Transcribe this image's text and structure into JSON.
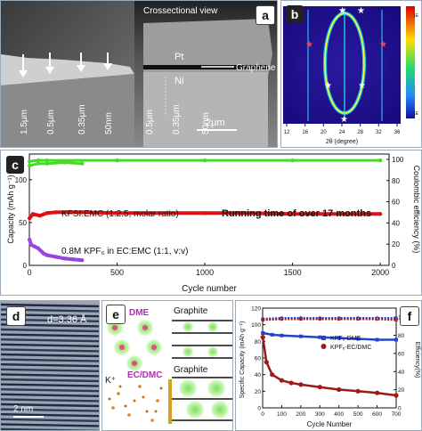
{
  "panel_a": {
    "tag": "a",
    "title": "Crossectional view",
    "left_labels": [
      "1.5μm",
      "0.5μm",
      "0.35μm",
      "50nm"
    ],
    "right_labels": [
      "0.5μm",
      "0.35μm",
      "50nm"
    ],
    "pt_label": "Pt",
    "ni_label": "Ni",
    "graphene_label": "Graphene",
    "scalebar": "2μm"
  },
  "panel_b": {
    "tag": "b",
    "xlabel": "2θ (degree)",
    "xticks": [
      "12",
      "16",
      "20",
      "24",
      "28",
      "32",
      "36"
    ],
    "colorbar_top": "1E",
    "colorbar_bottom": "1E"
  },
  "panel_c": {
    "tag": "c",
    "ylabel_left": "Capacity (mAh g⁻¹)",
    "ylabel_right": "Coulombic efficiency (%)",
    "xlabel": "Cycle number",
    "yticks_left": [
      "0",
      "50",
      "100"
    ],
    "yticks_right": [
      "0",
      "20",
      "40",
      "60",
      "80",
      "100"
    ],
    "xticks": [
      "0",
      "500",
      "1000",
      "1500",
      "2000"
    ],
    "label_kfsi": "KFSI:EMC (1:2.5, molar ratio)",
    "label_running": "Running time of over 17 months",
    "label_kpf6": "0.8M KPF₆ in EC:EMC (1:1, v:v)",
    "colors": {
      "efficiency": "#44dd22",
      "kfsi": "#dd1111",
      "kpf6": "#9944dd"
    }
  },
  "panel_d": {
    "tag": "d",
    "spacing": "d=3.36 Å",
    "scalebar": "2 nm"
  },
  "panel_e": {
    "tag": "e",
    "dme": "DME",
    "graphite_top": "Graphite",
    "k_ion": "K⁺",
    "ec_dmc": "EC/DMC",
    "graphite_bottom": "Graphite"
  },
  "panel_f": {
    "tag": "f",
    "ylabel_left": "Specific Capacity (mAh g⁻¹)",
    "ylabel_right": "Efficiency(%)",
    "xlabel": "Cycle Number",
    "yticks_left": [
      "0",
      "20",
      "40",
      "60",
      "80",
      "100",
      "120"
    ],
    "yticks_right": [
      "0",
      "20",
      "40",
      "60",
      "80",
      "100"
    ],
    "xticks": [
      "0",
      "100",
      "200",
      "300",
      "400",
      "500",
      "600",
      "700"
    ],
    "legend_dme": "KPF₆-DME",
    "legend_ec": "KPF₆-EC/DMC",
    "colors": {
      "dme": "#2244cc",
      "ec": "#a01818"
    }
  },
  "chart_data": [
    {
      "type": "line",
      "panel": "c",
      "xlabel": "Cycle number",
      "ylabel": "Capacity (mAh g⁻¹)",
      "y2label": "Coulombic efficiency (%)",
      "xlim": [
        0,
        2050
      ],
      "ylim": [
        0,
        130
      ],
      "y2lim": [
        0,
        105
      ],
      "series": [
        {
          "name": "KFSI:EMC (1:2.5, molar ratio)",
          "axis": "left",
          "x": [
            1,
            20,
            60,
            100,
            150,
            200,
            300,
            500,
            800,
            1000,
            1200,
            1500,
            1800,
            2000
          ],
          "y": [
            55,
            60,
            58,
            61,
            62,
            62,
            62,
            61,
            61,
            61,
            61,
            60,
            60,
            60
          ]
        },
        {
          "name": "0.8M KPF₆ in EC:EMC (1:1, v:v)",
          "axis": "left",
          "x": [
            1,
            10,
            30,
            50,
            80,
            100,
            150,
            200,
            250,
            300
          ],
          "y": [
            30,
            24,
            22,
            20,
            14,
            12,
            10,
            8,
            7,
            6
          ]
        },
        {
          "name": "Coulombic efficiency (KFSI)",
          "axis": "right",
          "x": [
            1,
            50,
            100,
            500,
            1000,
            1500,
            2000
          ],
          "y": [
            98,
            99,
            99,
            99,
            99,
            99,
            99
          ]
        },
        {
          "name": "Coulombic efficiency (KPF₆)",
          "axis": "right",
          "x": [
            1,
            50,
            100,
            200,
            300
          ],
          "y": [
            94,
            96,
            96,
            97,
            96
          ]
        }
      ]
    },
    {
      "type": "scatter",
      "panel": "f",
      "xlabel": "Cycle Number",
      "ylabel": "Specific Capacity (mAh g⁻¹)",
      "y2label": "Efficiency(%)",
      "xlim": [
        0,
        700
      ],
      "ylim": [
        0,
        120
      ],
      "y2lim": [
        0,
        110
      ],
      "series": [
        {
          "name": "KPF₆-DME",
          "axis": "left",
          "x": [
            1,
            50,
            100,
            200,
            300,
            400,
            500,
            600,
            700
          ],
          "y": [
            90,
            88,
            87,
            86,
            85,
            84,
            83,
            82,
            82
          ]
        },
        {
          "name": "KPF₆-EC/DMC",
          "axis": "left",
          "x": [
            1,
            20,
            50,
            100,
            150,
            200,
            300,
            400,
            500,
            600,
            700
          ],
          "y": [
            85,
            55,
            40,
            33,
            30,
            28,
            25,
            22,
            20,
            18,
            15
          ]
        },
        {
          "name": "Efficiency KPF₆-DME",
          "axis": "right",
          "x": [
            1,
            100,
            200,
            300,
            400,
            500,
            600,
            700
          ],
          "y": [
            98,
            99,
            99,
            99,
            99,
            99,
            99,
            99
          ]
        },
        {
          "name": "Efficiency KPF₆-EC/DMC",
          "axis": "right",
          "x": [
            1,
            100,
            200,
            300,
            400,
            500,
            600,
            700
          ],
          "y": [
            97,
            98,
            98,
            98,
            98,
            98,
            98,
            97
          ]
        }
      ]
    }
  ]
}
